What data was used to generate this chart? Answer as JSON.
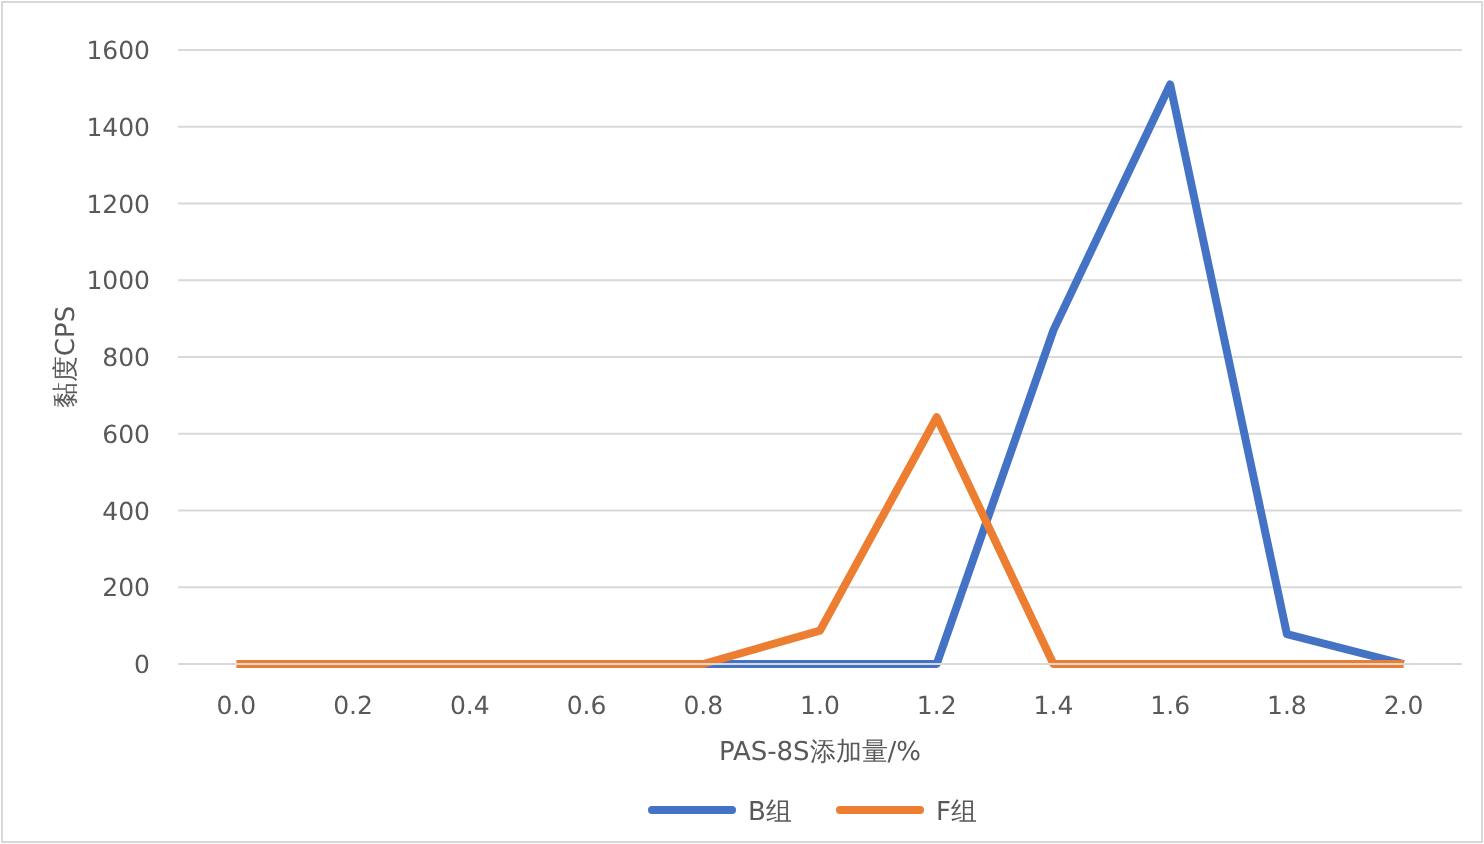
{
  "chart_data": {
    "type": "line",
    "xlabel": "PAS-8S添加量/%",
    "ylabel": "黏度CPS",
    "categories": [
      "0.0",
      "0.2",
      "0.4",
      "0.6",
      "0.8",
      "1.0",
      "1.2",
      "1.4",
      "1.6",
      "1.8",
      "2.0"
    ],
    "series": [
      {
        "name": "B组",
        "color": "#4472c4",
        "values": [
          null,
          null,
          null,
          null,
          0,
          0,
          0,
          870,
          1510,
          78,
          0
        ]
      },
      {
        "name": "F组",
        "color": "#ed7d31",
        "values": [
          0,
          0,
          0,
          0,
          0,
          87,
          643,
          0,
          0,
          0,
          0
        ]
      }
    ],
    "ylim": [
      0,
      1600
    ],
    "yticks": [
      0,
      200,
      400,
      600,
      800,
      1000,
      1200,
      1400,
      1600
    ],
    "grid": "y",
    "legend": "bottom",
    "marker": "none",
    "line_style": "solid"
  }
}
